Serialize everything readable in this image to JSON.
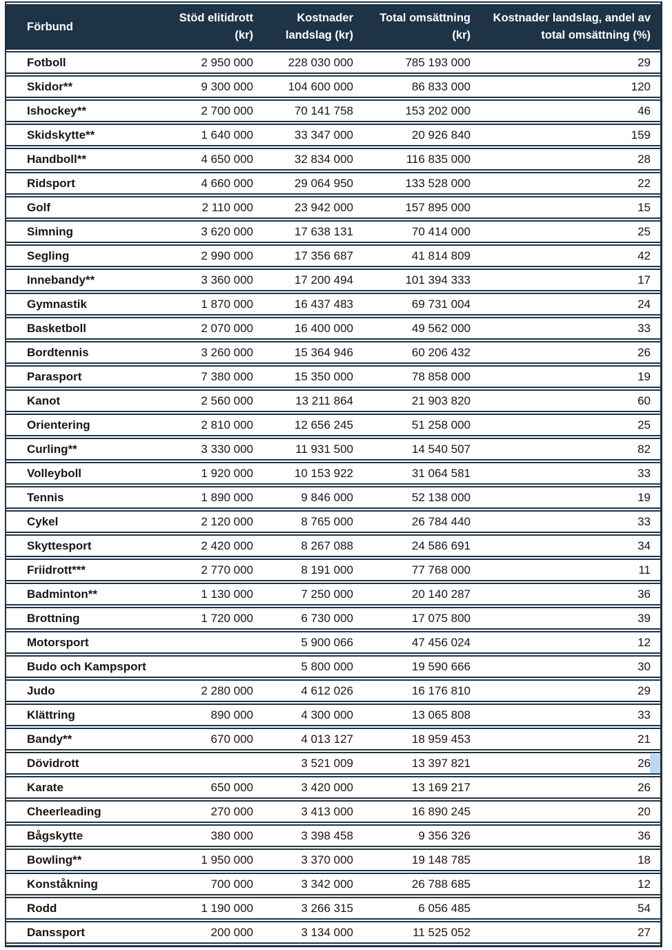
{
  "colors": {
    "header_bg": "#1f3346",
    "border": "#1f3346",
    "row_bg": "#ffffff",
    "header_text": "#ffffff",
    "body_text": "#161616",
    "selection_highlight": "#bdd7f3"
  },
  "table": {
    "columns": [
      {
        "id": "forbund",
        "lines": [
          "Förbund"
        ]
      },
      {
        "id": "stod-elitidrott",
        "lines": [
          "Stöd elitidrott",
          "(kr)"
        ]
      },
      {
        "id": "kostnader-landslag",
        "lines": [
          "Kostnader",
          "landslag (kr)"
        ]
      },
      {
        "id": "total-omsattning",
        "lines": [
          "Total omsättning",
          "(kr)"
        ]
      },
      {
        "id": "andel",
        "lines": [
          "Kostnader landslag, andel av",
          "total omsättning (%)"
        ]
      }
    ],
    "rows": [
      {
        "forbund": "Fotboll",
        "stod_elitidrott": "2 950 000",
        "kostnader_landslag": "228 030 000",
        "total_omsattning": "785 193 000",
        "andel_procent": "29"
      },
      {
        "forbund": "Skidor**",
        "stod_elitidrott": "9 300 000",
        "kostnader_landslag": "104 600 000",
        "total_omsattning": "86 833 000",
        "andel_procent": "120"
      },
      {
        "forbund": "Ishockey**",
        "stod_elitidrott": "2 700 000",
        "kostnader_landslag": "70 141 758",
        "total_omsattning": "153 202 000",
        "andel_procent": "46"
      },
      {
        "forbund": "Skidskytte**",
        "stod_elitidrott": "1 640 000",
        "kostnader_landslag": "33 347 000",
        "total_omsattning": "20 926 840",
        "andel_procent": "159"
      },
      {
        "forbund": "Handboll**",
        "stod_elitidrott": "4 650 000",
        "kostnader_landslag": "32 834 000",
        "total_omsattning": "116 835 000",
        "andel_procent": "28"
      },
      {
        "forbund": "Ridsport",
        "stod_elitidrott": "4 660 000",
        "kostnader_landslag": "29 064 950",
        "total_omsattning": "133 528 000",
        "andel_procent": "22"
      },
      {
        "forbund": "Golf",
        "stod_elitidrott": "2 110 000",
        "kostnader_landslag": "23 942 000",
        "total_omsattning": "157 895 000",
        "andel_procent": "15"
      },
      {
        "forbund": "Simning",
        "stod_elitidrott": "3 620 000",
        "kostnader_landslag": "17 638 131",
        "total_omsattning": "70 414 000",
        "andel_procent": "25"
      },
      {
        "forbund": "Segling",
        "stod_elitidrott": "2 990 000",
        "kostnader_landslag": "17 356 687",
        "total_omsattning": "41 814 809",
        "andel_procent": "42"
      },
      {
        "forbund": "Innebandy**",
        "stod_elitidrott": "3 360 000",
        "kostnader_landslag": "17 200 494",
        "total_omsattning": "101 394 333",
        "andel_procent": "17"
      },
      {
        "forbund": "Gymnastik",
        "stod_elitidrott": "1 870 000",
        "kostnader_landslag": "16 437 483",
        "total_omsattning": "69 731 004",
        "andel_procent": "24"
      },
      {
        "forbund": "Basketboll",
        "stod_elitidrott": "2 070 000",
        "kostnader_landslag": "16 400 000",
        "total_omsattning": "49 562 000",
        "andel_procent": "33"
      },
      {
        "forbund": "Bordtennis",
        "stod_elitidrott": "3 260 000",
        "kostnader_landslag": "15 364 946",
        "total_omsattning": "60 206 432",
        "andel_procent": "26"
      },
      {
        "forbund": "Parasport",
        "stod_elitidrott": "7 380 000",
        "kostnader_landslag": "15 350 000",
        "total_omsattning": "78 858 000",
        "andel_procent": "19"
      },
      {
        "forbund": "Kanot",
        "stod_elitidrott": "2 560 000",
        "kostnader_landslag": "13 211 864",
        "total_omsattning": "21 903 820",
        "andel_procent": "60"
      },
      {
        "forbund": "Orientering",
        "stod_elitidrott": "2 810 000",
        "kostnader_landslag": "12 656 245",
        "total_omsattning": "51 258 000",
        "andel_procent": "25"
      },
      {
        "forbund": "Curling**",
        "stod_elitidrott": "3 330 000",
        "kostnader_landslag": "11 931 500",
        "total_omsattning": "14 540 507",
        "andel_procent": "82"
      },
      {
        "forbund": "Volleyboll",
        "stod_elitidrott": "1 920 000",
        "kostnader_landslag": "10 153 922",
        "total_omsattning": "31 064 581",
        "andel_procent": "33"
      },
      {
        "forbund": "Tennis",
        "stod_elitidrott": "1 890 000",
        "kostnader_landslag": "9 846 000",
        "total_omsattning": "52 138 000",
        "andel_procent": "19"
      },
      {
        "forbund": "Cykel",
        "stod_elitidrott": "2 120 000",
        "kostnader_landslag": "8 765 000",
        "total_omsattning": "26 784 440",
        "andel_procent": "33"
      },
      {
        "forbund": "Skyttesport",
        "stod_elitidrott": "2 420 000",
        "kostnader_landslag": "8 267 088",
        "total_omsattning": "24 586 691",
        "andel_procent": "34"
      },
      {
        "forbund": "Friidrott***",
        "stod_elitidrott": "2 770 000",
        "kostnader_landslag": "8 191 000",
        "total_omsattning": "77 768 000",
        "andel_procent": "11"
      },
      {
        "forbund": "Badminton**",
        "stod_elitidrott": "1 130 000",
        "kostnader_landslag": "7 250 000",
        "total_omsattning": "20 140 287",
        "andel_procent": "36"
      },
      {
        "forbund": "Brottning",
        "stod_elitidrott": "1 720 000",
        "kostnader_landslag": "6 730 000",
        "total_omsattning": "17 075 800",
        "andel_procent": "39"
      },
      {
        "forbund": "Motorsport",
        "stod_elitidrott": "",
        "kostnader_landslag": "5 900 066",
        "total_omsattning": "47 456 024",
        "andel_procent": "12"
      },
      {
        "forbund": "Budo och Kampsport",
        "stod_elitidrott": "",
        "kostnader_landslag": "5 800 000",
        "total_omsattning": "19 590 666",
        "andel_procent": "30"
      },
      {
        "forbund": "Judo",
        "stod_elitidrott": "2 280 000",
        "kostnader_landslag": "4 612 026",
        "total_omsattning": "16 176 810",
        "andel_procent": "29"
      },
      {
        "forbund": "Klättring",
        "stod_elitidrott": "890 000",
        "kostnader_landslag": "4 300 000",
        "total_omsattning": "13 065 808",
        "andel_procent": "33"
      },
      {
        "forbund": "Bandy**",
        "stod_elitidrott": "670 000",
        "kostnader_landslag": "4 013 127",
        "total_omsattning": "18 959 453",
        "andel_procent": "21"
      },
      {
        "forbund": "Dövidrott",
        "stod_elitidrott": "",
        "kostnader_landslag": "3 521 009",
        "total_omsattning": "13 397 821",
        "andel_procent": "26",
        "highlighted": true
      },
      {
        "forbund": "Karate",
        "stod_elitidrott": "650 000",
        "kostnader_landslag": "3 420 000",
        "total_omsattning": "13 169 217",
        "andel_procent": "26"
      },
      {
        "forbund": "Cheerleading",
        "stod_elitidrott": "270 000",
        "kostnader_landslag": "3 413 000",
        "total_omsattning": "16 890 245",
        "andel_procent": "20"
      },
      {
        "forbund": "Bågskytte",
        "stod_elitidrott": "380 000",
        "kostnader_landslag": "3 398 458",
        "total_omsattning": "9 356 326",
        "andel_procent": "36"
      },
      {
        "forbund": "Bowling**",
        "stod_elitidrott": "1 950 000",
        "kostnader_landslag": "3 370 000",
        "total_omsattning": "19 148 785",
        "andel_procent": "18"
      },
      {
        "forbund": "Konståkning",
        "stod_elitidrott": "700 000",
        "kostnader_landslag": "3 342 000",
        "total_omsattning": "26 788 685",
        "andel_procent": "12"
      },
      {
        "forbund": "Rodd",
        "stod_elitidrott": "1 190 000",
        "kostnader_landslag": "3 266 315",
        "total_omsattning": "6 056 485",
        "andel_procent": "54"
      },
      {
        "forbund": "Danssport",
        "stod_elitidrott": "200 000",
        "kostnader_landslag": "3 134 000",
        "total_omsattning": "11 525 052",
        "andel_procent": "27"
      }
    ]
  }
}
